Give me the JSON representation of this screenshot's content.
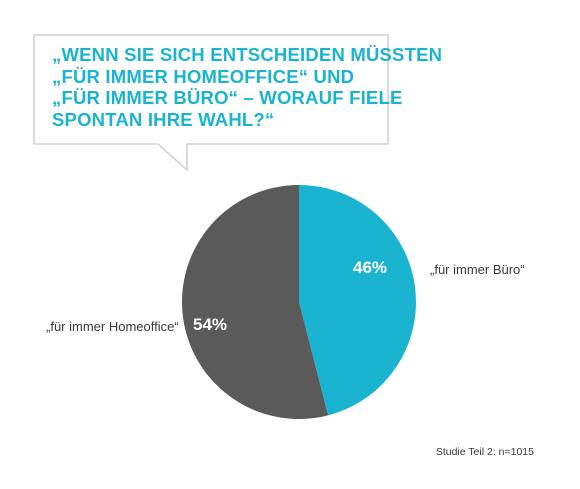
{
  "question": {
    "lines": [
      "„WENN SIE SICH ENTSCHEIDEN MÜSSTEN",
      "„FÜR IMMER HOMEOFFICE“ UND",
      "„FÜR IMMER BÜRO“ – WORAUF FIELE",
      "SPONTAN IHRE WAHL?“"
    ]
  },
  "colors": {
    "accent": "#1ab4d0",
    "homeoffice": "#5a5a5a",
    "buero": "#1ab4d0",
    "bubble_border": "#cfcfcf"
  },
  "chart_data": {
    "type": "pie",
    "slices": [
      {
        "label": "„für immer Büro“",
        "value": 46,
        "display": "46%",
        "color": "#1ab4d0"
      },
      {
        "label": "„für immer Homeoffice“",
        "value": 54,
        "display": "54%",
        "color": "#5a5a5a"
      }
    ],
    "start": "top",
    "direction": "clockwise"
  },
  "source": "Studie Teil 2: n=1015"
}
